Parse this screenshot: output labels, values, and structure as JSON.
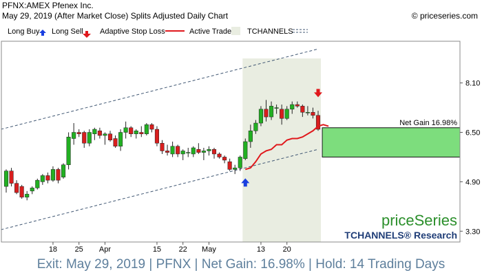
{
  "header": {
    "line1": "PFNX:AMEX Pfenex Inc.",
    "line2": "May 29, 2019 (After Market Close)  Splits Adjusted Daily Chart",
    "copyright": "© priceseries.com"
  },
  "legend": {
    "long_buy": "Long Buy",
    "long_sell": "Long Sell",
    "adaptive_stop": "Adaptive Stop Loss",
    "active_trade": "Active Trade",
    "tchannels": "TCHANNELS"
  },
  "annotation": {
    "net_gain": "Net Gain 16.98%"
  },
  "branding": {
    "logo": "priceSeries",
    "research": "TCHANNELS® Research"
  },
  "footer": "Exit: May 29, 2019 | PFNX | Net Gain: 16.98% | Hold: 14 Trading Days",
  "colors": {
    "up_candle": "#22b022",
    "down_candle": "#d81e1e",
    "stop_line": "#e0181c",
    "trade_zone": "#e9ede1",
    "gain_box": "#7ddd7d",
    "channel": "#3f5672",
    "buy_arrow": "#1a3fe0",
    "sell_arrow": "#e0181c",
    "footer_text": "#5e7f9c"
  },
  "chart_data": {
    "type": "candlestick",
    "y_axis": {
      "ylim": [
        2.95,
        9.45
      ],
      "ticks": [
        3.3,
        4.9,
        6.5,
        8.1
      ],
      "tick_labels": [
        "3.30",
        "4.90",
        "6.50",
        "8.10"
      ],
      "position": "right",
      "scale": "linear"
    },
    "x_labels": [
      {
        "label": "18",
        "index": 9
      },
      {
        "label": "25",
        "index": 14
      },
      {
        "label": "Apr",
        "index": 19
      },
      {
        "label": "15",
        "index": 29
      },
      {
        "label": "22",
        "index": 34
      },
      {
        "label": "May",
        "index": 39
      },
      {
        "label": "13",
        "index": 49
      },
      {
        "label": "20",
        "index": 54
      }
    ],
    "candles": [
      [
        4.75,
        5.3,
        4.55,
        5.25
      ],
      [
        5.25,
        5.35,
        4.75,
        4.85
      ],
      [
        4.85,
        4.95,
        4.5,
        4.55
      ],
      [
        4.75,
        4.8,
        4.35,
        4.4
      ],
      [
        4.4,
        4.6,
        4.3,
        4.5
      ],
      [
        4.6,
        4.75,
        4.5,
        4.7
      ],
      [
        4.7,
        5.0,
        4.65,
        4.95
      ],
      [
        4.9,
        5.15,
        4.8,
        5.1
      ],
      [
        5.1,
        5.2,
        4.85,
        4.95
      ],
      [
        4.95,
        5.4,
        4.9,
        5.3
      ],
      [
        5.3,
        5.35,
        4.85,
        4.95
      ],
      [
        5.05,
        5.5,
        5.0,
        5.45
      ],
      [
        5.45,
        6.5,
        5.3,
        6.35
      ],
      [
        6.3,
        6.8,
        6.1,
        6.5
      ],
      [
        6.5,
        6.6,
        6.35,
        6.45
      ],
      [
        6.5,
        6.55,
        6.0,
        6.15
      ],
      [
        6.15,
        6.6,
        6.05,
        6.5
      ],
      [
        6.45,
        6.65,
        6.25,
        6.6
      ],
      [
        6.55,
        6.65,
        6.3,
        6.4
      ],
      [
        6.4,
        6.5,
        6.1,
        6.45
      ],
      [
        6.45,
        6.55,
        6.2,
        6.25
      ],
      [
        6.3,
        6.4,
        6.0,
        6.05
      ],
      [
        6.05,
        6.6,
        5.9,
        6.5
      ],
      [
        6.5,
        6.85,
        6.3,
        6.65
      ],
      [
        6.65,
        6.7,
        6.35,
        6.45
      ],
      [
        6.45,
        6.6,
        6.3,
        6.55
      ],
      [
        6.5,
        6.7,
        6.35,
        6.45
      ],
      [
        6.45,
        6.8,
        6.4,
        6.75
      ],
      [
        6.75,
        6.8,
        6.5,
        6.6
      ],
      [
        6.6,
        6.7,
        6.05,
        6.15
      ],
      [
        6.15,
        6.25,
        5.8,
        5.9
      ],
      [
        5.9,
        6.1,
        5.75,
        5.85
      ],
      [
        5.8,
        6.2,
        5.7,
        6.05
      ],
      [
        6.05,
        6.1,
        5.7,
        5.8
      ],
      [
        5.8,
        5.95,
        5.6,
        5.9
      ],
      [
        5.85,
        6.0,
        5.7,
        5.85
      ],
      [
        5.8,
        6.05,
        5.7,
        6.0
      ],
      [
        5.95,
        6.15,
        5.8,
        5.85
      ],
      [
        5.85,
        6.0,
        5.6,
        5.9
      ],
      [
        5.9,
        6.05,
        5.75,
        5.95
      ],
      [
        5.95,
        6.0,
        5.65,
        5.8
      ],
      [
        5.8,
        5.85,
        5.65,
        5.7
      ],
      [
        5.7,
        5.75,
        5.5,
        5.6
      ],
      [
        5.55,
        5.65,
        5.25,
        5.3
      ],
      [
        5.3,
        5.45,
        5.15,
        5.35
      ],
      [
        5.35,
        5.75,
        5.25,
        5.7
      ],
      [
        5.65,
        6.3,
        5.6,
        6.2
      ],
      [
        6.2,
        6.75,
        6.0,
        6.55
      ],
      [
        6.55,
        6.9,
        6.45,
        6.8
      ],
      [
        6.8,
        7.35,
        6.7,
        7.25
      ],
      [
        7.25,
        7.55,
        6.85,
        7.0
      ],
      [
        7.0,
        7.5,
        6.9,
        7.35
      ],
      [
        7.3,
        7.4,
        7.1,
        7.3
      ],
      [
        7.25,
        7.4,
        6.75,
        6.95
      ],
      [
        6.95,
        7.35,
        6.9,
        7.25
      ],
      [
        7.25,
        7.5,
        7.1,
        7.4
      ],
      [
        7.4,
        7.5,
        7.3,
        7.35
      ],
      [
        7.35,
        7.4,
        7.0,
        7.15
      ],
      [
        7.15,
        7.35,
        7.05,
        7.15
      ],
      [
        7.15,
        7.3,
        6.95,
        7.05
      ],
      [
        7.05,
        7.2,
        6.55,
        6.6
      ]
    ],
    "adaptive_stop_loss": {
      "start_index": 46,
      "values": [
        5.3,
        5.35,
        5.55,
        5.8,
        5.9,
        5.95,
        6.1,
        6.1,
        6.25,
        6.3,
        6.3,
        6.35,
        6.45,
        6.55,
        6.7,
        6.75,
        6.7
      ]
    },
    "tchannels": {
      "upper": {
        "start": [
          -1,
          6.6
        ],
        "end": [
          60,
          9.2
        ]
      },
      "lower": {
        "start": [
          -1,
          3.35
        ],
        "end": [
          60,
          5.95
        ]
      }
    },
    "signals": [
      {
        "type": "long_buy",
        "index": 46,
        "price": 4.9
      },
      {
        "type": "long_sell",
        "index": 60,
        "price": 7.75
      }
    ],
    "active_trade": {
      "start_index": 46,
      "end_index": 60
    },
    "net_gain_box": {
      "label": "Net Gain 16.98%",
      "entry": 5.7,
      "exit": 6.65
    }
  }
}
